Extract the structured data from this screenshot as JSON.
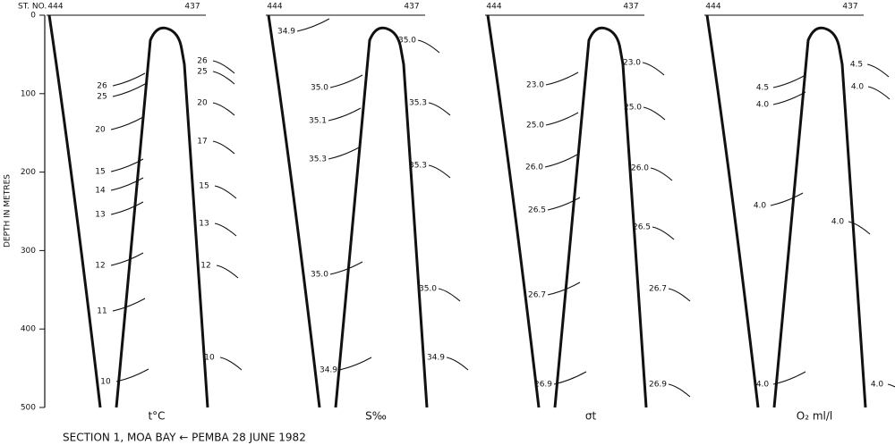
{
  "figure": {
    "y_axis": {
      "label": "DEPTH IN METRES",
      "ticks": [
        0,
        100,
        200,
        300,
        400,
        500
      ],
      "lim": [
        0,
        500
      ]
    },
    "station_prefix": "ST. NO.",
    "stations": [
      "444",
      "437"
    ],
    "panels": [
      {
        "title": "t°C",
        "contour_labels": [
          "26",
          "25",
          "20",
          "15",
          "14",
          "13",
          "12",
          "11",
          "10",
          "26",
          "25",
          "20",
          "17",
          "15",
          "13",
          "12",
          "10"
        ]
      },
      {
        "title": "S‰",
        "contour_labels": [
          "34.9",
          "35.0",
          "35.0",
          "35.1",
          "35.3",
          "35.3",
          "35.3",
          "35.0",
          "35.0",
          "34.9",
          "34.9"
        ]
      },
      {
        "title": "σt",
        "contour_labels": [
          "23.0",
          "23.0",
          "25.0",
          "25.0",
          "26.0",
          "26.0",
          "26.5",
          "26.5",
          "26.7",
          "26.7",
          "26.9",
          "26.9"
        ]
      },
      {
        "title": "O₂ ml/l",
        "contour_labels": [
          "4.5",
          "4.5",
          "4.0",
          "4.0",
          "4.0",
          "4.0",
          "4.0",
          "4.0"
        ]
      }
    ],
    "caption": "SECTION 1,  MOA BAY ← PEMBA   28 JUNE 1982"
  }
}
